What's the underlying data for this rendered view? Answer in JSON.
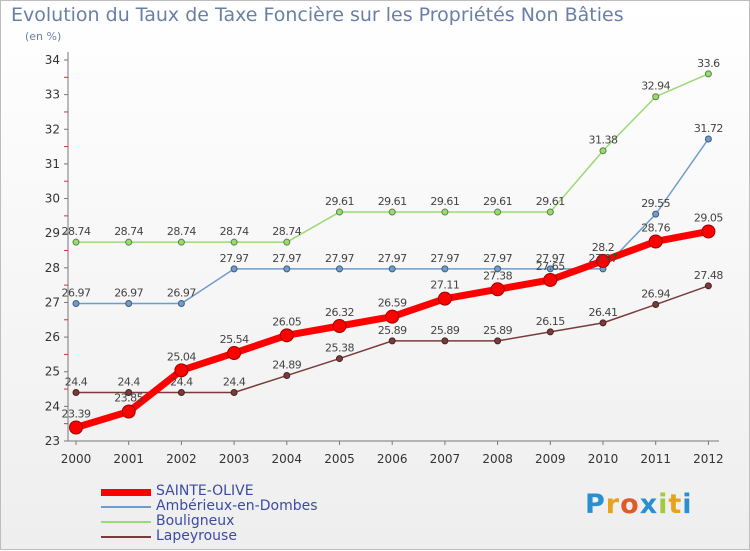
{
  "title": "Evolution du Taux de Taxe Foncière sur les Propriétés Non Bâties",
  "unit_label": "(en %)",
  "logo": {
    "text": "Proxiti",
    "letter_colors": [
      "#2a8fd0",
      "#e8a21c",
      "#e05a2a",
      "#2a8fd0",
      "#a4c93a",
      "#e8a21c",
      "#2a8fd0"
    ]
  },
  "chart_data": {
    "type": "line",
    "title": "Evolution du Taux de Taxe Foncière sur les Propriétés Non Bâties",
    "ylabel": "(en %)",
    "xlabel": "",
    "x": [
      "2000",
      "2001",
      "2002",
      "2003",
      "2004",
      "2005",
      "2006",
      "2007",
      "2008",
      "2009",
      "2010",
      "2011",
      "2012"
    ],
    "ylim": [
      23,
      34
    ],
    "yticks": [
      "23",
      "24",
      "25",
      "26",
      "27",
      "28",
      "29",
      "30",
      "31",
      "32",
      "33",
      "34"
    ],
    "grid": false,
    "legend_position": "bottom",
    "series": [
      {
        "name": "SAINTE-OLIVE",
        "color": "#ff0000",
        "values": [
          23.39,
          23.85,
          25.04,
          25.54,
          26.05,
          26.32,
          26.59,
          27.11,
          27.38,
          27.65,
          28.2,
          28.76,
          29.05
        ]
      },
      {
        "name": "Ambérieux-en-Dombes",
        "color": "#6e9ccc",
        "values": [
          26.97,
          26.97,
          26.97,
          27.97,
          27.97,
          27.97,
          27.97,
          27.97,
          27.97,
          27.97,
          27.97,
          29.55,
          31.72
        ]
      },
      {
        "name": "Bouligneux",
        "color": "#9ada73",
        "values": [
          28.74,
          28.74,
          28.74,
          28.74,
          28.74,
          29.61,
          29.61,
          29.61,
          29.61,
          29.61,
          31.38,
          32.94,
          33.6
        ]
      },
      {
        "name": "Lapeyrouse",
        "color": "#7a3b3b",
        "values": [
          24.4,
          24.4,
          24.4,
          24.4,
          24.89,
          25.38,
          25.89,
          25.89,
          25.89,
          26.15,
          26.41,
          26.94,
          27.48
        ]
      }
    ]
  }
}
